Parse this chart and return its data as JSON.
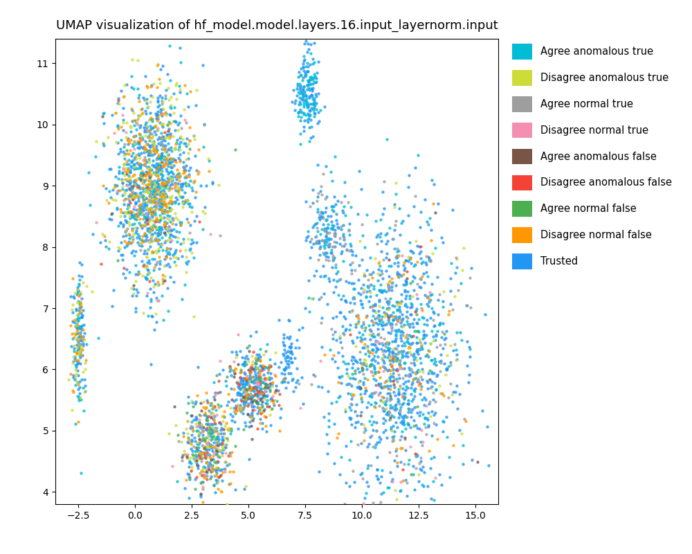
{
  "title": "UMAP visualization of hf_model.model.layers.16.input_layernorm.input",
  "xlim": [
    -3.5,
    16.0
  ],
  "ylim": [
    3.8,
    11.4
  ],
  "xticks": [
    -2.5,
    0.0,
    2.5,
    5.0,
    7.5,
    10.0,
    12.5,
    15.0
  ],
  "yticks": [
    4,
    5,
    6,
    7,
    8,
    9,
    10,
    11
  ],
  "categories": [
    "Agree anomalous true",
    "Disagree anomalous true",
    "Agree normal true",
    "Disagree normal true",
    "Agree anomalous false",
    "Disagree anomalous false",
    "Agree normal false",
    "Disagree normal false",
    "Trusted"
  ],
  "colors": [
    "#00bcd4",
    "#cddc39",
    "#9e9e9e",
    "#f48fb1",
    "#795548",
    "#f44336",
    "#4caf50",
    "#ff9800",
    "#2196f3"
  ],
  "marker_size": 10,
  "alpha": 0.8,
  "background_color": "#ffffff",
  "title_fontsize": 13,
  "legend_fontsize": 10.5
}
